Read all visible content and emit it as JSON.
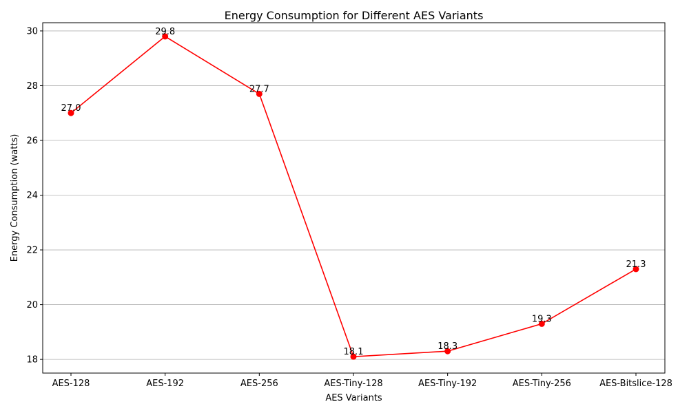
{
  "chart_data": {
    "type": "line",
    "title": "Energy Consumption for Different AES Variants",
    "xlabel": "AES Variants",
    "ylabel": "Energy Consumption (watts)",
    "categories": [
      "AES-128",
      "AES-192",
      "AES-256",
      "AES-Tiny-128",
      "AES-Tiny-192",
      "AES-Tiny-256",
      "AES-Bitslice-128"
    ],
    "series": [
      {
        "values": [
          27.0,
          29.8,
          27.7,
          18.1,
          18.3,
          19.3,
          21.3
        ],
        "color": "#ff0000",
        "marker": "circle"
      }
    ],
    "data_labels": [
      "27.0",
      "29.8",
      "27.7",
      "18.1",
      "18.3",
      "19.3",
      "21.3"
    ],
    "yticks": [
      18,
      20,
      22,
      24,
      26,
      28,
      30
    ],
    "ytick_labels": [
      "18",
      "20",
      "22",
      "24",
      "26",
      "28",
      "30"
    ],
    "ylim": [
      17.5,
      30.3
    ],
    "grid": "horizontal",
    "legend": "none"
  }
}
